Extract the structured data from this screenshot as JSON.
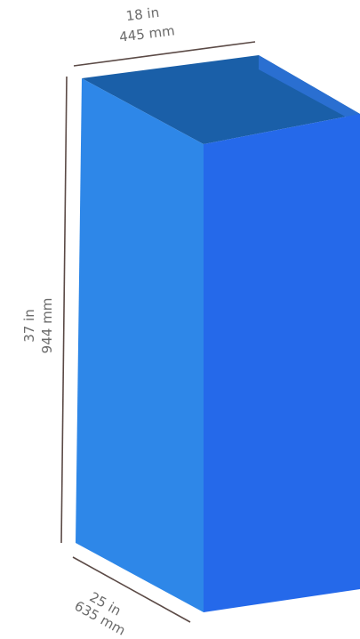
{
  "dimensions": {
    "width": {
      "imperial": "18 in",
      "metric": "445 mm"
    },
    "height": {
      "imperial": "37 in",
      "metric": "944 mm"
    },
    "depth": {
      "imperial": "25 in",
      "metric": "635 mm"
    }
  },
  "colors": {
    "top_inner_left": "#1a5fa8",
    "top_inner_right": "#2a6fd1",
    "left_face": "#2e87e8",
    "right_face": "#2569ea",
    "dimension_line": "#5b4a46",
    "dimension_text": "#6b6b6b"
  }
}
